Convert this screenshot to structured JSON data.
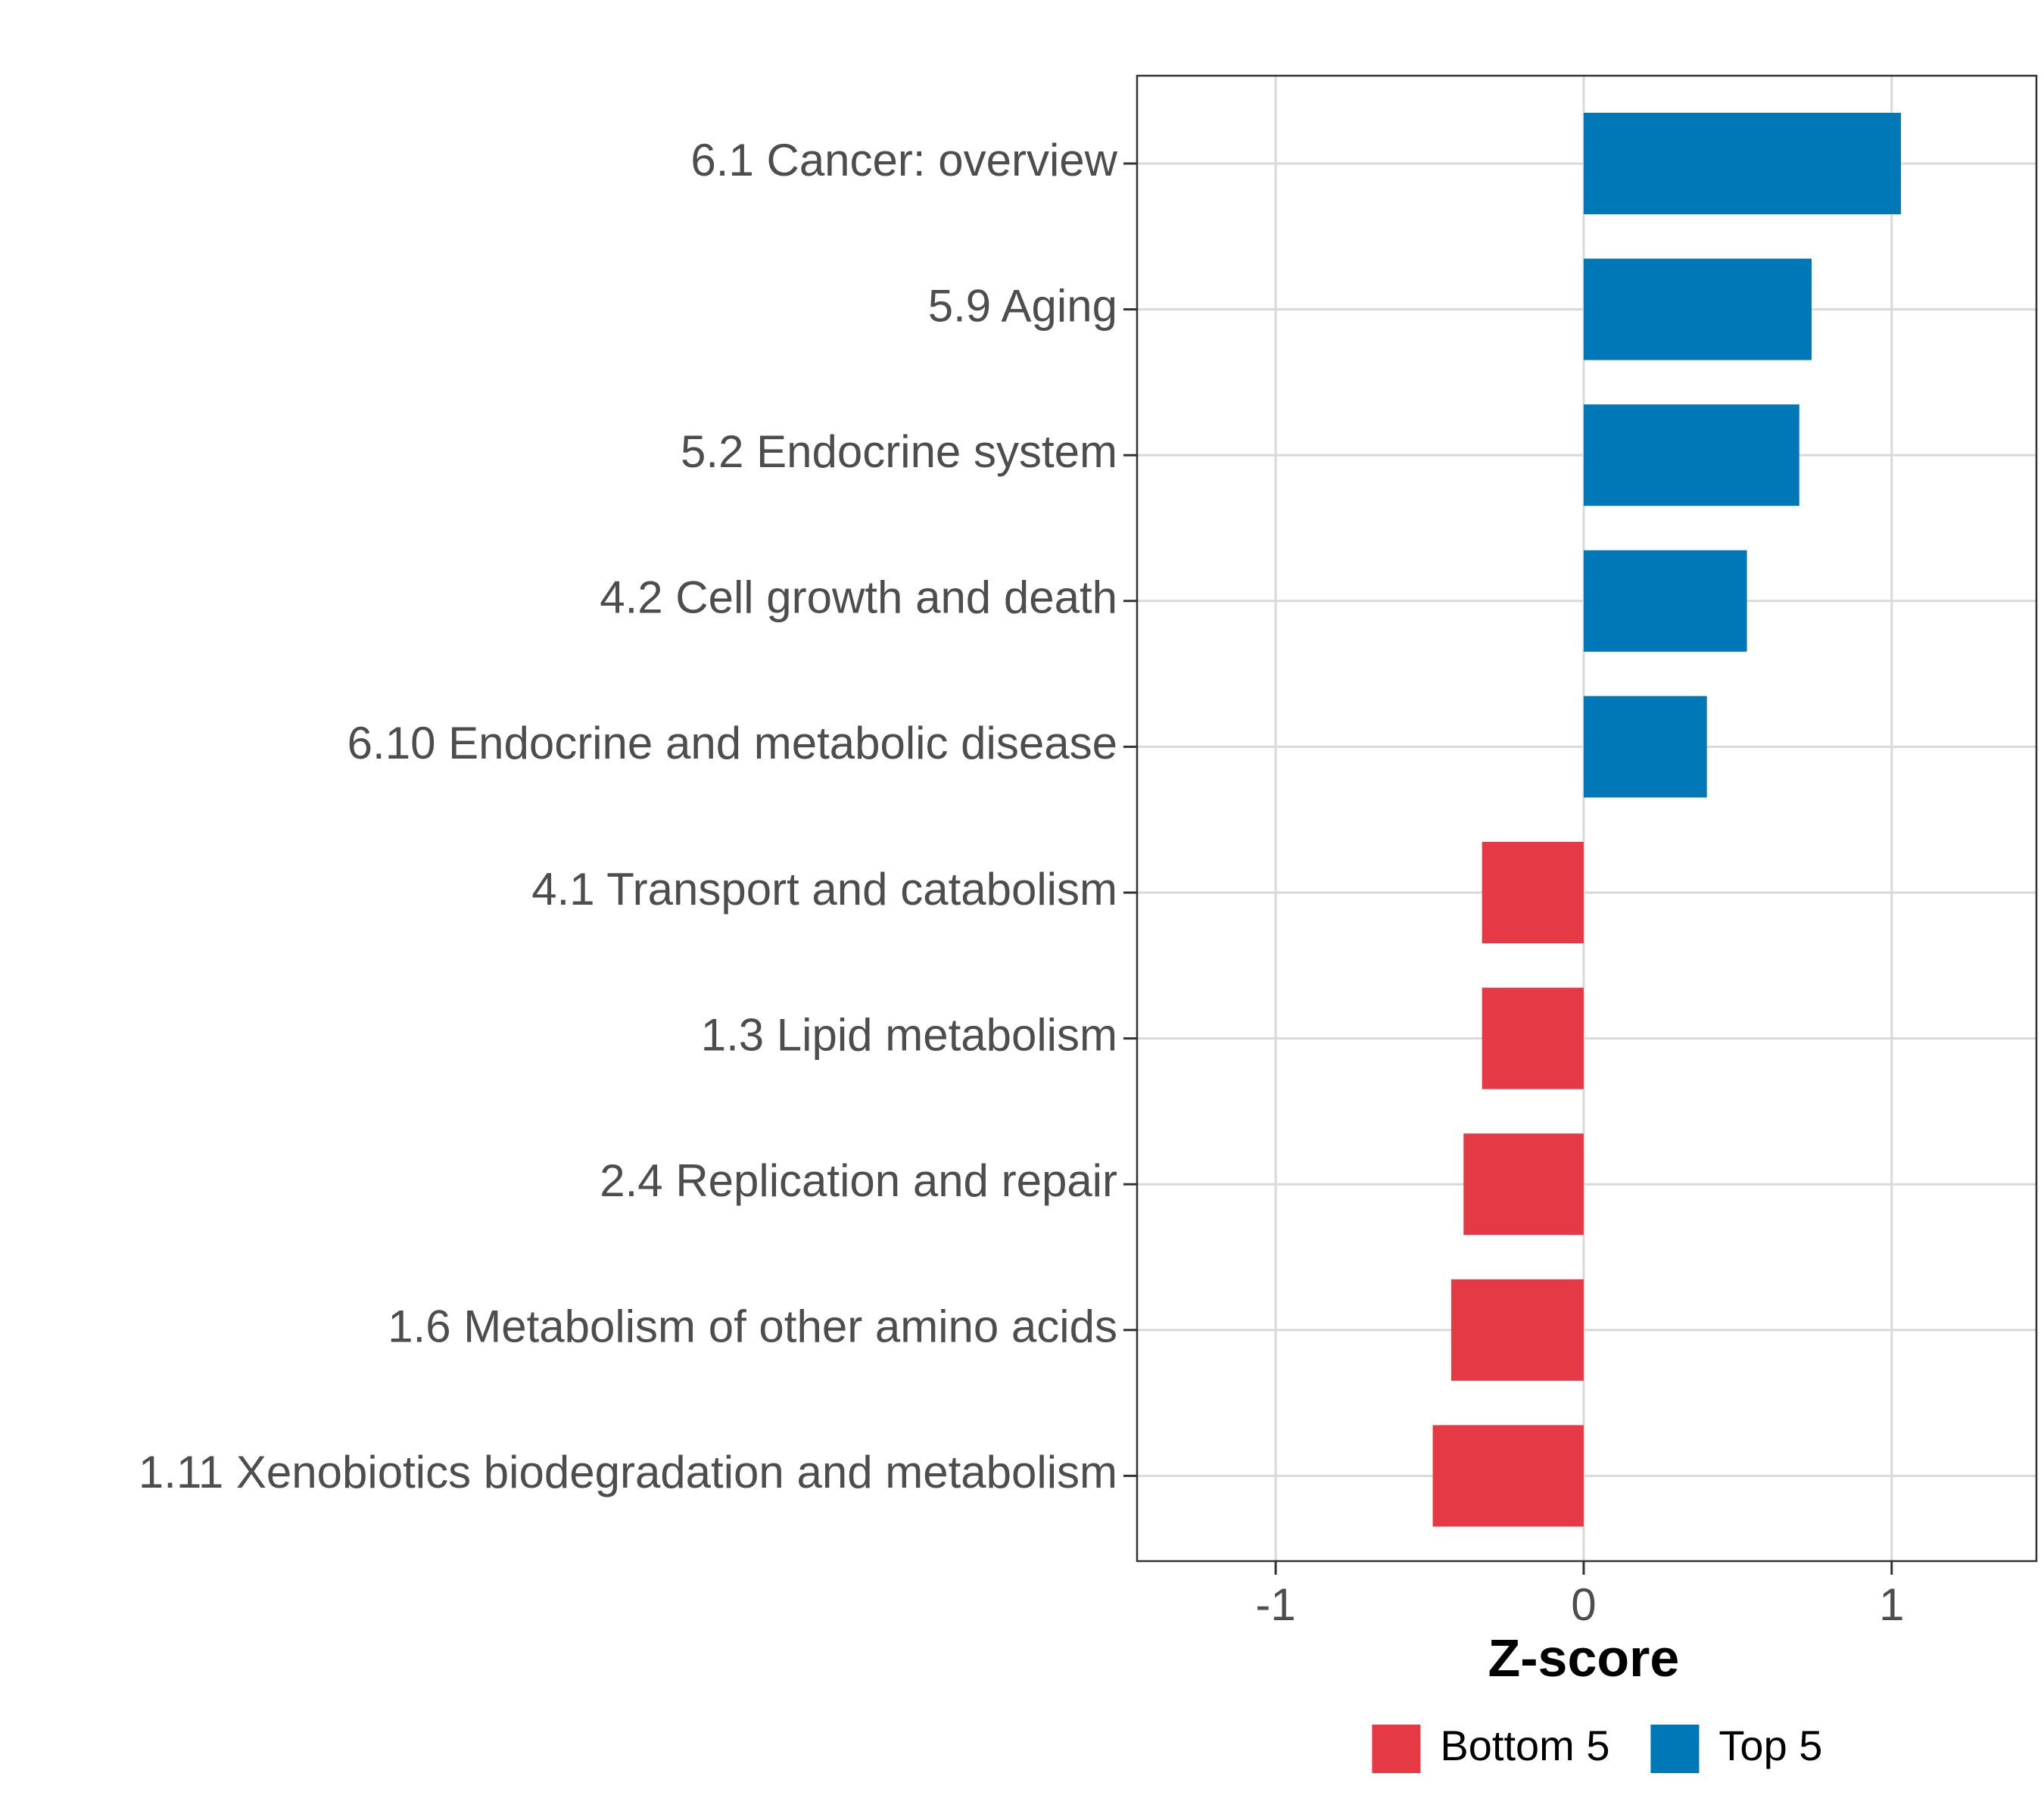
{
  "chart_data": {
    "type": "bar",
    "orientation": "horizontal",
    "categories": [
      "6.1 Cancer: overview",
      "5.9 Aging",
      "5.2 Endocrine system",
      "4.2 Cell growth and death",
      "6.10 Endocrine and metabolic disease",
      "4.1 Transport and catabolism",
      "1.3 Lipid metabolism",
      "2.4 Replication and repair",
      "1.6 Metabolism of other amino acids",
      "1.11 Xenobiotics biodegradation and metabolism"
    ],
    "values": [
      1.03,
      0.74,
      0.7,
      0.53,
      0.4,
      -0.33,
      -0.33,
      -0.39,
      -0.43,
      -0.49
    ],
    "groups": [
      "Top 5",
      "Top 5",
      "Top 5",
      "Top 5",
      "Top 5",
      "Bottom 5",
      "Bottom 5",
      "Bottom 5",
      "Bottom 5",
      "Bottom 5"
    ],
    "xlabel": "Z-score",
    "ylabel": "",
    "xlim": [
      -1.45,
      1.47
    ],
    "xticks": [
      -1,
      0,
      1
    ],
    "xtick_labels": [
      "-1",
      "0",
      "1"
    ],
    "grid": true,
    "legend": {
      "position": "bottom",
      "items": [
        {
          "label": "Bottom 5",
          "color": "#e63946"
        },
        {
          "label": "Top 5",
          "color": "#0077b6"
        }
      ]
    }
  }
}
